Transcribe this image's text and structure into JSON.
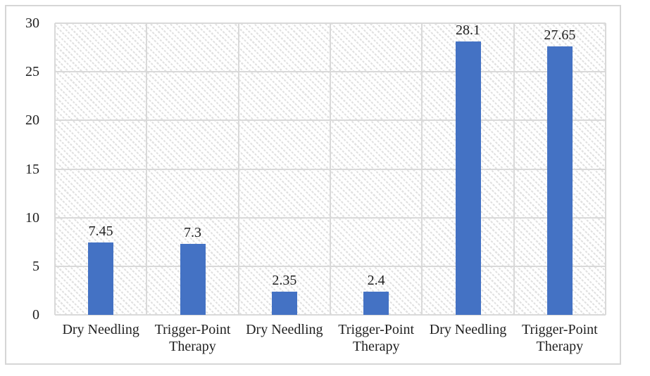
{
  "chart_data": {
    "type": "bar",
    "title": "",
    "xlabel": "",
    "ylabel": "",
    "categories": [
      "Dry Needling",
      "Trigger-Point Therapy",
      "Dry Needling",
      "Trigger-Point Therapy",
      "Dry Needling",
      "Trigger-Point Therapy"
    ],
    "values": [
      7.45,
      7.3,
      2.35,
      2.4,
      28.1,
      27.65
    ],
    "data_labels": [
      "7.45",
      "7.3",
      "2.35",
      "2.4",
      "28.1",
      "27.65"
    ],
    "ylim": [
      0,
      30
    ],
    "y_ticks": [
      0,
      5,
      10,
      15,
      20,
      25,
      30
    ],
    "grid": true,
    "vertical_category_gridlines": true,
    "legend": false,
    "plot_area_fill": "light-downward-diagonal-hatch",
    "colors": {
      "bar": "#4472C4",
      "gridline": "#D9D9D9",
      "hatch_stripe": "#E1E1E1",
      "frame_border": "#D6D6D6",
      "text": "#1F1F1F"
    }
  }
}
